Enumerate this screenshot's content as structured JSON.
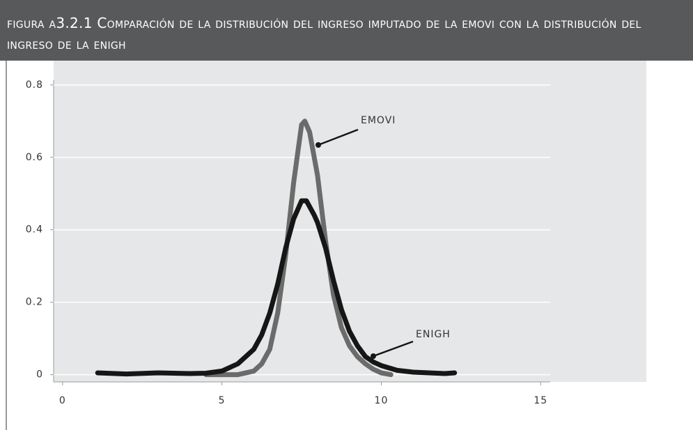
{
  "chart_data": {
    "type": "line",
    "title": "figura a3.2.1 Comparación de la distribución del ingreso imputado de la emovi con la distribución del ingreso de la enigh",
    "xlim": [
      -0.28,
      15.3
    ],
    "ylim": [
      -0.02,
      0.867
    ],
    "xticks": [
      0,
      5,
      10,
      15
    ],
    "yticks": [
      0,
      0.2,
      0.4,
      0.6,
      0.8
    ],
    "grid": true,
    "series": [
      {
        "name": "EMOVI",
        "color": "#6b6b6b",
        "x": [
          4.5,
          5,
          5.5,
          6,
          6.25,
          6.5,
          6.75,
          7,
          7.25,
          7.5,
          7.6,
          7.75,
          8,
          8.25,
          8.5,
          8.75,
          9,
          9.25,
          9.5,
          9.75,
          10,
          10.3
        ],
        "values": [
          0,
          0,
          0,
          0.01,
          0.03,
          0.07,
          0.17,
          0.33,
          0.53,
          0.69,
          0.7,
          0.67,
          0.55,
          0.37,
          0.22,
          0.13,
          0.08,
          0.05,
          0.03,
          0.015,
          0.005,
          0
        ]
      },
      {
        "name": "ENIGH",
        "color": "#161616",
        "x": [
          1.1,
          2,
          3,
          4,
          4.5,
          5,
          5.5,
          6,
          6.25,
          6.5,
          6.75,
          7,
          7.25,
          7.5,
          7.65,
          7.9,
          8,
          8.25,
          8.5,
          8.75,
          9,
          9.25,
          9.5,
          9.75,
          10,
          10.5,
          11,
          11.5,
          12,
          12.3
        ],
        "values": [
          0.005,
          0.002,
          0.005,
          0.003,
          0.004,
          0.01,
          0.03,
          0.07,
          0.11,
          0.17,
          0.25,
          0.35,
          0.43,
          0.48,
          0.48,
          0.44,
          0.42,
          0.35,
          0.26,
          0.18,
          0.12,
          0.08,
          0.05,
          0.035,
          0.025,
          0.012,
          0.007,
          0.005,
          0.003,
          0.005
        ]
      }
    ]
  }
}
